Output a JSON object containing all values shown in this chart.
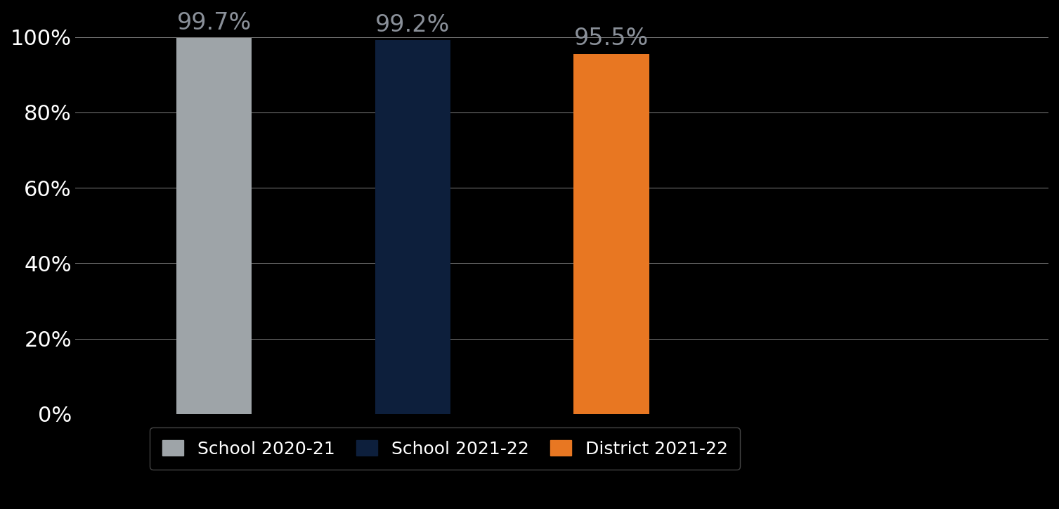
{
  "categories": [
    "School 2020-21",
    "School 2021-22",
    "District 2021-22"
  ],
  "values": [
    99.7,
    99.2,
    95.5
  ],
  "bar_colors": [
    "#9EA4A8",
    "#0D1F3C",
    "#E87722"
  ],
  "value_labels": [
    "99.7%",
    "99.2%",
    "95.5%"
  ],
  "ylim": [
    0,
    107
  ],
  "yticks": [
    0,
    20,
    40,
    60,
    80,
    100
  ],
  "yticklabels": [
    "0%",
    "20%",
    "40%",
    "60%",
    "80%",
    "100%"
  ],
  "background_color": "#000000",
  "text_color": "#FFFFFF",
  "value_label_color": "#8A9099",
  "grid_color": "#FFFFFF",
  "tick_fontsize": 22,
  "legend_fontsize": 18,
  "bar_width": 0.38,
  "value_label_fontsize": 24,
  "bar_positions": [
    1,
    2,
    3
  ],
  "xlim": [
    0.3,
    5.2
  ]
}
